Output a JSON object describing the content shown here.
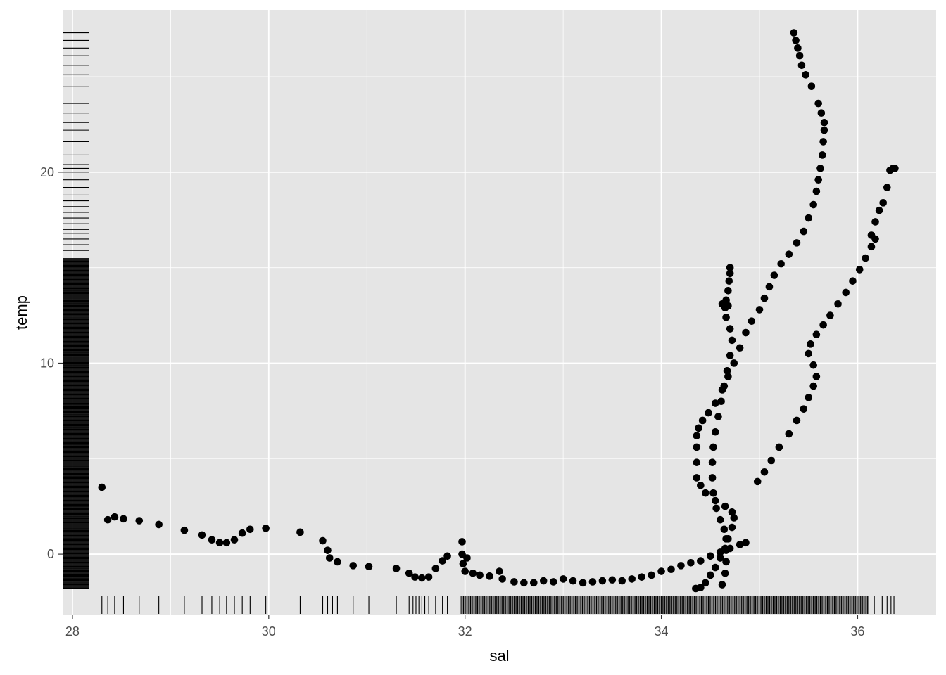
{
  "chart_data": {
    "type": "scatter",
    "title": "",
    "xlabel": "sal",
    "ylabel": "temp",
    "xlim": [
      27.9,
      36.8
    ],
    "ylim": [
      -3.2,
      28.5
    ],
    "x_ticks": [
      28,
      30,
      32,
      34,
      36
    ],
    "y_ticks": [
      0,
      10,
      20
    ],
    "x_tick_labels": [
      "28",
      "30",
      "32",
      "34",
      "36"
    ],
    "y_tick_labels": [
      "0",
      "10",
      "20"
    ],
    "grid": true,
    "legend": "none",
    "rug": true,
    "colors": {
      "panel": "#e5e5e5",
      "grid_major": "#ffffff",
      "points": "#000000",
      "tick_label": "#4d4d4d",
      "axis_title": "#000000"
    },
    "series": [
      {
        "values": [
          [
            28.3,
            3.5
          ],
          [
            28.36,
            1.8
          ],
          [
            28.43,
            1.95
          ],
          [
            28.52,
            1.85
          ],
          [
            28.68,
            1.75
          ],
          [
            28.88,
            1.55
          ],
          [
            29.14,
            1.25
          ],
          [
            29.32,
            1.0
          ],
          [
            29.42,
            0.75
          ],
          [
            29.5,
            0.6
          ],
          [
            29.57,
            0.6
          ],
          [
            29.65,
            0.75
          ],
          [
            29.73,
            1.1
          ],
          [
            29.81,
            1.3
          ],
          [
            29.97,
            1.35
          ],
          [
            30.32,
            1.15
          ],
          [
            30.55,
            0.7
          ],
          [
            30.6,
            0.2
          ],
          [
            30.62,
            -0.2
          ],
          [
            30.7,
            -0.4
          ],
          [
            30.86,
            -0.6
          ],
          [
            31.02,
            -0.65
          ],
          [
            31.3,
            -0.75
          ],
          [
            31.43,
            -1.0
          ],
          [
            31.49,
            -1.2
          ],
          [
            31.56,
            -1.25
          ],
          [
            31.63,
            -1.2
          ],
          [
            31.7,
            -0.75
          ],
          [
            31.77,
            -0.35
          ],
          [
            31.82,
            -0.1
          ],
          [
            31.97,
            0.65
          ],
          [
            31.97,
            0.0
          ],
          [
            31.98,
            -0.5
          ],
          [
            32.0,
            -0.9
          ],
          [
            32.02,
            -0.2
          ],
          [
            32.08,
            -1.0
          ],
          [
            32.15,
            -1.1
          ],
          [
            32.25,
            -1.15
          ],
          [
            32.35,
            -0.9
          ],
          [
            32.38,
            -1.3
          ],
          [
            32.5,
            -1.45
          ],
          [
            32.6,
            -1.5
          ],
          [
            32.7,
            -1.5
          ],
          [
            32.8,
            -1.4
          ],
          [
            32.9,
            -1.45
          ],
          [
            33.0,
            -1.3
          ],
          [
            33.1,
            -1.4
          ],
          [
            33.2,
            -1.5
          ],
          [
            33.3,
            -1.45
          ],
          [
            33.4,
            -1.4
          ],
          [
            33.5,
            -1.35
          ],
          [
            33.6,
            -1.4
          ],
          [
            33.7,
            -1.3
          ],
          [
            33.8,
            -1.2
          ],
          [
            33.9,
            -1.1
          ],
          [
            34.0,
            -0.9
          ],
          [
            34.1,
            -0.8
          ],
          [
            34.2,
            -0.6
          ],
          [
            34.3,
            -0.45
          ],
          [
            34.4,
            -0.35
          ],
          [
            34.5,
            -0.1
          ],
          [
            34.6,
            0.1
          ],
          [
            34.7,
            0.3
          ],
          [
            34.8,
            0.5
          ],
          [
            34.86,
            0.6
          ],
          [
            34.35,
            -1.8
          ],
          [
            34.4,
            -1.75
          ],
          [
            34.45,
            -1.5
          ],
          [
            34.5,
            -1.1
          ],
          [
            34.55,
            -0.7
          ],
          [
            34.6,
            -0.2
          ],
          [
            34.65,
            0.3
          ],
          [
            34.68,
            0.8
          ],
          [
            34.72,
            1.4
          ],
          [
            34.74,
            1.9
          ],
          [
            34.72,
            2.2
          ],
          [
            34.65,
            2.5
          ],
          [
            34.55,
            2.8
          ],
          [
            34.45,
            3.2
          ],
          [
            34.4,
            3.6
          ],
          [
            34.36,
            4.0
          ],
          [
            34.36,
            4.8
          ],
          [
            34.36,
            5.6
          ],
          [
            34.36,
            6.2
          ],
          [
            34.38,
            6.6
          ],
          [
            34.42,
            7.0
          ],
          [
            34.48,
            7.4
          ],
          [
            34.55,
            7.9
          ],
          [
            34.62,
            8.6
          ],
          [
            34.68,
            9.3
          ],
          [
            34.74,
            10.0
          ],
          [
            34.8,
            10.8
          ],
          [
            34.86,
            11.6
          ],
          [
            34.92,
            12.2
          ],
          [
            35.0,
            12.8
          ],
          [
            35.05,
            13.4
          ],
          [
            35.1,
            14.0
          ],
          [
            35.15,
            14.6
          ],
          [
            35.22,
            15.2
          ],
          [
            35.3,
            15.7
          ],
          [
            35.38,
            16.3
          ],
          [
            35.45,
            16.9
          ],
          [
            35.5,
            17.6
          ],
          [
            35.55,
            18.3
          ],
          [
            35.58,
            19.0
          ],
          [
            35.6,
            19.6
          ],
          [
            35.62,
            20.2
          ],
          [
            35.64,
            20.9
          ],
          [
            35.65,
            21.6
          ],
          [
            35.66,
            22.2
          ],
          [
            35.66,
            22.6
          ],
          [
            35.63,
            23.1
          ],
          [
            35.6,
            23.6
          ],
          [
            35.53,
            24.5
          ],
          [
            35.47,
            25.1
          ],
          [
            35.43,
            25.6
          ],
          [
            35.41,
            26.1
          ],
          [
            35.39,
            26.5
          ],
          [
            35.37,
            26.9
          ],
          [
            35.35,
            27.3
          ],
          [
            34.62,
            -1.6
          ],
          [
            34.65,
            -1.0
          ],
          [
            34.66,
            -0.4
          ],
          [
            34.66,
            0.2
          ],
          [
            34.66,
            0.8
          ],
          [
            34.64,
            1.3
          ],
          [
            34.6,
            1.8
          ],
          [
            34.56,
            2.4
          ],
          [
            34.53,
            3.2
          ],
          [
            34.52,
            4.0
          ],
          [
            34.52,
            4.8
          ],
          [
            34.53,
            5.6
          ],
          [
            34.55,
            6.4
          ],
          [
            34.58,
            7.2
          ],
          [
            34.61,
            8.0
          ],
          [
            34.64,
            8.8
          ],
          [
            34.67,
            9.6
          ],
          [
            34.7,
            10.4
          ],
          [
            34.72,
            11.2
          ],
          [
            34.7,
            11.8
          ],
          [
            34.66,
            12.4
          ],
          [
            34.65,
            12.9
          ],
          [
            34.66,
            13.3
          ],
          [
            34.68,
            13.8
          ],
          [
            34.69,
            14.3
          ],
          [
            34.7,
            14.7
          ],
          [
            34.7,
            15.0
          ],
          [
            34.62,
            13.1
          ],
          [
            34.68,
            13.0
          ],
          [
            34.98,
            3.8
          ],
          [
            35.05,
            4.3
          ],
          [
            35.12,
            4.9
          ],
          [
            35.2,
            5.6
          ],
          [
            35.3,
            6.3
          ],
          [
            35.38,
            7.0
          ],
          [
            35.45,
            7.6
          ],
          [
            35.5,
            8.2
          ],
          [
            35.55,
            8.8
          ],
          [
            35.58,
            9.3
          ],
          [
            35.55,
            9.9
          ],
          [
            35.5,
            10.5
          ],
          [
            35.52,
            11.0
          ],
          [
            35.58,
            11.5
          ],
          [
            35.65,
            12.0
          ],
          [
            35.72,
            12.5
          ],
          [
            35.8,
            13.1
          ],
          [
            35.88,
            13.7
          ],
          [
            35.95,
            14.3
          ],
          [
            36.02,
            14.9
          ],
          [
            36.08,
            15.5
          ],
          [
            36.14,
            16.1
          ],
          [
            36.18,
            16.5
          ],
          [
            36.14,
            16.7
          ],
          [
            36.18,
            17.4
          ],
          [
            36.22,
            18.0
          ],
          [
            36.26,
            18.4
          ],
          [
            36.3,
            19.2
          ],
          [
            36.33,
            20.1
          ],
          [
            36.36,
            20.2
          ],
          [
            36.38,
            20.2
          ]
        ]
      }
    ],
    "rug_x": [
      28.3,
      28.36,
      28.43,
      28.52,
      28.68,
      28.88,
      29.14,
      29.32,
      29.42,
      29.5,
      29.57,
      29.65,
      29.73,
      29.81,
      29.97,
      30.32,
      30.55,
      30.6,
      30.65,
      30.7,
      30.86,
      31.02,
      31.3,
      31.43,
      31.47,
      31.5,
      31.53,
      31.56,
      31.59,
      31.63,
      31.7,
      31.77,
      31.82
    ],
    "rug_x_dense": [
      [
        31.96,
        34.3
      ],
      [
        34.3,
        36.12
      ]
    ],
    "rug_x_extra": [
      36.17,
      36.25,
      36.3,
      36.34,
      36.37
    ],
    "rug_y_dense": [
      [
        -1.8,
        15.5
      ]
    ],
    "rug_y": [
      15.9,
      16.2,
      16.5,
      16.8,
      17.0,
      17.3,
      17.6,
      17.9,
      18.2,
      18.5,
      18.8,
      19.2,
      19.6,
      20.0,
      20.2,
      20.4,
      20.9,
      21.6,
      22.2,
      22.6,
      23.1,
      23.6,
      24.5,
      25.1,
      25.6,
      26.1,
      26.5,
      26.9,
      27.3
    ]
  }
}
